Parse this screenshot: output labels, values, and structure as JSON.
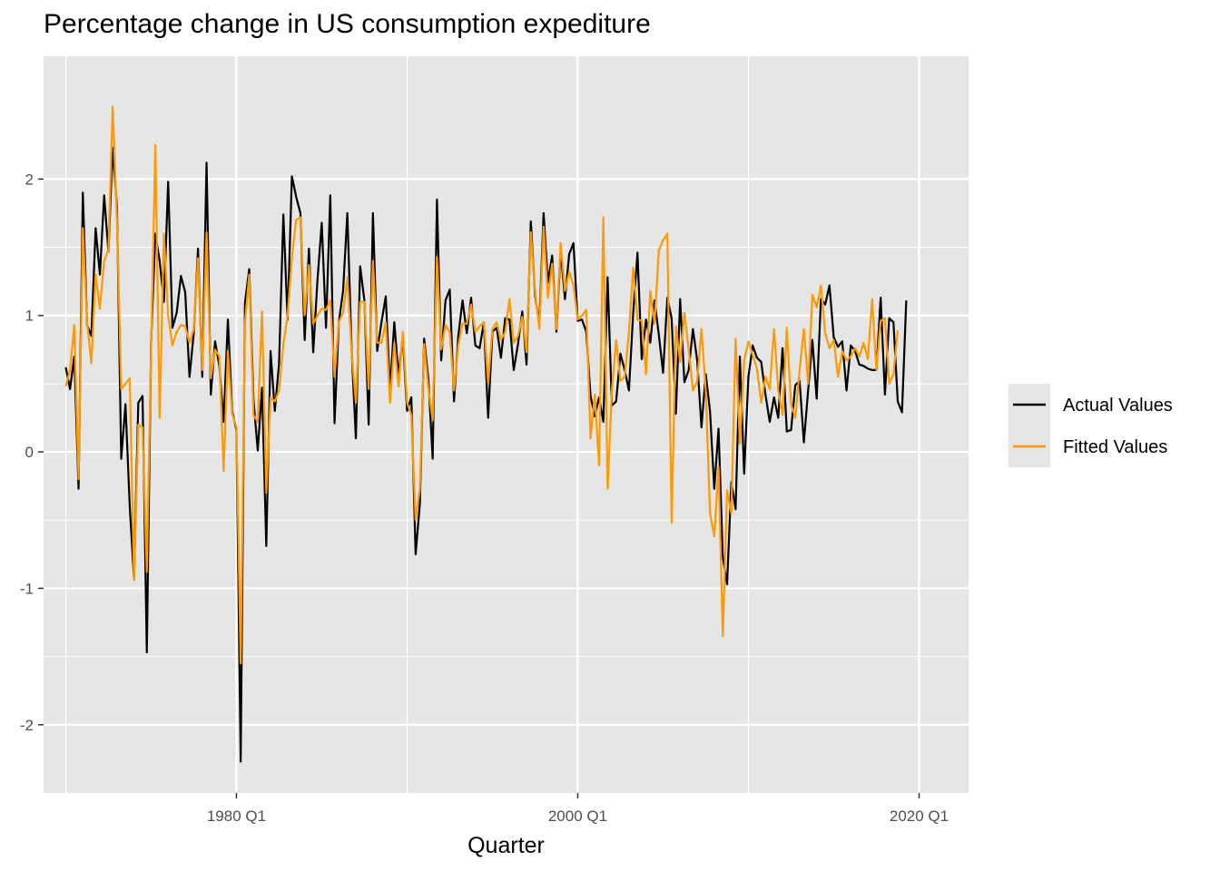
{
  "chart_data": {
    "type": "line",
    "title": "Percentage change in US consumption expediture",
    "xlabel": "Quarter",
    "ylabel": "",
    "x_range": [
      1968.7,
      2022.9
    ],
    "ylim": [
      -2.5,
      2.9
    ],
    "x_ticks": [
      {
        "label": "1980 Q1",
        "value": 1980.0
      },
      {
        "label": "2000 Q1",
        "value": 2000.0
      },
      {
        "label": "2020 Q1",
        "value": 2020.0
      }
    ],
    "y_ticks": [
      {
        "label": "-2",
        "value": -2
      },
      {
        "label": "-1",
        "value": -1
      },
      {
        "label": "0",
        "value": 0
      },
      {
        "label": "1",
        "value": 1
      },
      {
        "label": "2",
        "value": 2
      }
    ],
    "grid": true,
    "background": "#e5e5e5",
    "legend_position": "right",
    "x_start_quarter": "1970 Q1",
    "series": [
      {
        "name": "Actual Values",
        "color": "#000000",
        "values": [
          0.62,
          0.46,
          0.7,
          -0.27,
          1.9,
          0.93,
          0.85,
          1.64,
          1.3,
          1.88,
          1.47,
          2.23,
          1.8,
          -0.05,
          0.35,
          -0.4,
          -0.93,
          0.36,
          0.41,
          -1.47,
          0.8,
          1.6,
          1.4,
          1.1,
          1.98,
          0.91,
          1.02,
          1.29,
          1.17,
          0.55,
          0.87,
          1.49,
          0.55,
          2.12,
          0.42,
          0.81,
          0.63,
          0.22,
          0.97,
          0.3,
          0.16,
          -2.27,
          1.09,
          1.34,
          0.38,
          0.01,
          0.47,
          -0.69,
          0.74,
          0.3,
          0.65,
          1.74,
          0.97,
          2.02,
          1.87,
          1.75,
          0.82,
          1.49,
          0.73,
          1.26,
          1.68,
          0.91,
          1.88,
          0.21,
          0.95,
          1.18,
          1.75,
          0.75,
          0.1,
          1.36,
          1.11,
          0.2,
          1.75,
          0.74,
          0.95,
          1.14,
          0.45,
          0.95,
          0.56,
          0.84,
          0.3,
          0.4,
          -0.75,
          -0.38,
          0.83,
          0.53,
          -0.05,
          1.85,
          0.67,
          1.11,
          1.19,
          0.37,
          0.85,
          1.11,
          0.87,
          1.13,
          0.78,
          0.76,
          0.95,
          0.25,
          0.88,
          0.91,
          0.69,
          0.98,
          0.97,
          0.6,
          0.79,
          1.03,
          0.64,
          1.69,
          1.15,
          0.94,
          1.75,
          1.24,
          1.44,
          0.88,
          1.48,
          1.12,
          1.45,
          1.53,
          0.96,
          0.97,
          0.88,
          0.41,
          0.26,
          0.4,
          0.22,
          1.28,
          0.34,
          0.37,
          0.72,
          0.6,
          0.45,
          1.02,
          1.46,
          0.68,
          0.97,
          0.8,
          1.11,
          0.86,
          0.58,
          1.13,
          0.98,
          0.28,
          1.12,
          0.51,
          0.6,
          0.9,
          0.67,
          0.18,
          0.57,
          0.3,
          -0.27,
          0.17,
          -0.77,
          -0.97,
          -0.22,
          -0.42,
          0.7,
          -0.16,
          0.55,
          0.78,
          0.69,
          0.66,
          0.42,
          0.22,
          0.4,
          0.25,
          0.76,
          0.15,
          0.16,
          0.49,
          0.52,
          0.07,
          0.45,
          0.82,
          0.39,
          1.12,
          1.08,
          1.22,
          0.84,
          0.77,
          0.81,
          0.45,
          0.78,
          0.74,
          0.64,
          0.63,
          0.61,
          0.6,
          0.6,
          1.13,
          0.42,
          0.98,
          0.95,
          0.37,
          0.29,
          1.11
        ]
      },
      {
        "name": "Fitted Values",
        "color": "#ff9900",
        "values": [
          0.48,
          0.6,
          0.93,
          -0.2,
          1.64,
          0.95,
          0.65,
          1.3,
          1.05,
          1.4,
          1.48,
          2.53,
          1.7,
          0.46,
          0.5,
          0.54,
          -0.94,
          0.2,
          0.18,
          -0.88,
          0.75,
          2.25,
          0.25,
          1.6,
          1.0,
          0.78,
          0.88,
          0.93,
          0.92,
          0.8,
          0.9,
          1.42,
          0.6,
          1.61,
          0.54,
          0.75,
          0.7,
          -0.14,
          0.74,
          0.28,
          0.18,
          -1.55,
          0.95,
          1.3,
          0.27,
          0.22,
          1.03,
          -0.3,
          0.4,
          0.37,
          0.45,
          0.79,
          1.0,
          1.42,
          1.7,
          1.72,
          1.0,
          1.37,
          0.94,
          1.0,
          1.05,
          1.04,
          1.11,
          0.55,
          0.95,
          1.02,
          1.28,
          0.73,
          0.36,
          1.1,
          1.1,
          0.46,
          1.4,
          0.8,
          0.8,
          0.95,
          0.36,
          0.8,
          0.48,
          0.88,
          0.36,
          0.27,
          -0.5,
          -0.27,
          0.79,
          0.46,
          0.23,
          1.43,
          0.75,
          0.93,
          0.88,
          0.45,
          0.78,
          0.94,
          0.94,
          1.08,
          0.88,
          0.92,
          0.95,
          0.5,
          0.9,
          0.95,
          0.82,
          0.88,
          1.12,
          0.8,
          0.85,
          0.99,
          0.73,
          1.61,
          1.18,
          0.9,
          1.65,
          1.13,
          1.38,
          0.9,
          1.53,
          1.18,
          1.32,
          1.22,
          0.97,
          1.0,
          1.04,
          0.1,
          0.42,
          -0.1,
          1.72,
          -0.27,
          0.45,
          0.82,
          0.52,
          0.55,
          0.88,
          1.35,
          0.97,
          0.96,
          0.57,
          1.18,
          0.94,
          1.48,
          1.55,
          1.6,
          -0.52,
          0.92,
          0.66,
          1.02,
          0.75,
          0.45,
          0.52,
          0.9,
          0.45,
          -0.45,
          -0.62,
          -0.11,
          -1.35,
          -0.28,
          -0.45,
          0.83,
          0.06,
          0.67,
          0.81,
          0.71,
          0.61,
          0.36,
          0.55,
          0.46,
          0.9,
          0.45,
          0.27,
          0.91,
          0.35,
          0.25,
          0.6,
          0.9,
          0.5,
          1.15,
          1.06,
          1.22,
          0.87,
          0.76,
          0.82,
          0.55,
          0.74,
          0.67,
          0.7,
          0.76,
          0.7,
          0.8,
          0.68,
          1.12,
          0.6,
          0.96,
          0.98,
          0.5,
          0.57,
          0.89
        ]
      }
    ]
  }
}
